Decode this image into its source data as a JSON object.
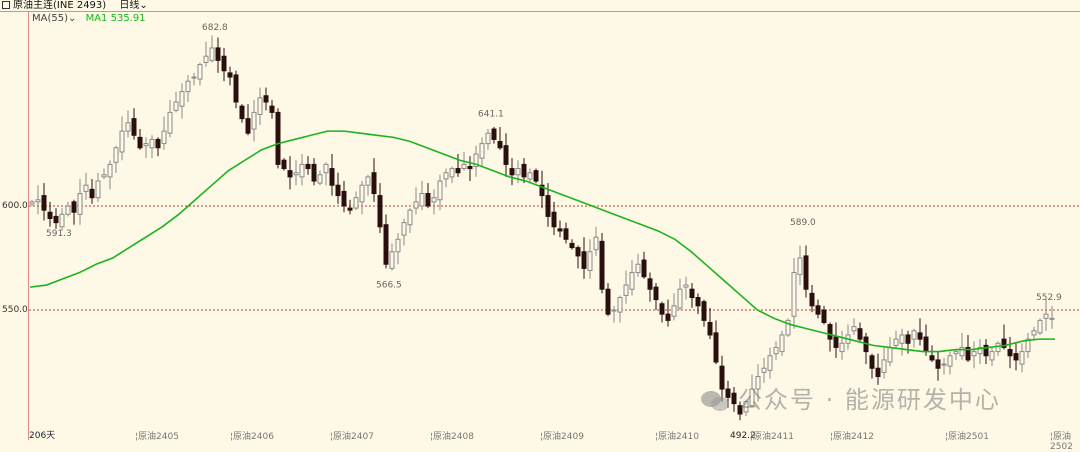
{
  "header": {
    "title": "原油主连(INE 2493)",
    "period": "日线",
    "ma_selector": "MA(55)",
    "ma1_label": "MA1 535.91"
  },
  "colors": {
    "up": "#8a8a8a",
    "down": "#2a0f0f",
    "ma": "#1cb31c",
    "gridline": "#c0392b",
    "background": "#fdf9e6"
  },
  "y_axis": {
    "ticks": [
      {
        "value": 600,
        "label": "600.0"
      },
      {
        "value": 550,
        "label": "550.0"
      }
    ]
  },
  "x_axis": {
    "days_label": "206天",
    "months": [
      "原油2405",
      "原油2406",
      "原油2407",
      "原油2408",
      "原油2409",
      "原油2410",
      "原油2411",
      "原油2412",
      "原油2501",
      "原油2502"
    ]
  },
  "annotations": [
    {
      "label": "682.8",
      "value": 682.8
    },
    {
      "label": "591.3",
      "value": 591.3
    },
    {
      "label": "566.5",
      "value": 566.5
    },
    {
      "label": "641.1",
      "value": 641.1
    },
    {
      "label": "589.0",
      "value": 589.0
    },
    {
      "label": "492.2",
      "value": 492.2
    },
    {
      "label": "552.9",
      "value": 552.9
    }
  ],
  "watermark": "公众号 · 能源研发中心",
  "chart_data": {
    "type": "candlestick",
    "closes": [
      602,
      603,
      598,
      594,
      592,
      596,
      600,
      597,
      606,
      610,
      604,
      612,
      615,
      620,
      628,
      636,
      640,
      634,
      628,
      630,
      632,
      628,
      636,
      645,
      650,
      655,
      660,
      662,
      668,
      672,
      676,
      670,
      665,
      662,
      650,
      642,
      635,
      645,
      652,
      650,
      645,
      620,
      618,
      614,
      616,
      620,
      618,
      612,
      615,
      620,
      610,
      605,
      600,
      598,
      604,
      610,
      614,
      606,
      590,
      572,
      578,
      584,
      592,
      598,
      602,
      606,
      600,
      604,
      612,
      616,
      618,
      616,
      620,
      618,
      625,
      630,
      635,
      632,
      628,
      620,
      615,
      618,
      614,
      616,
      612,
      605,
      595,
      590,
      588,
      584,
      580,
      576,
      570,
      578,
      585,
      560,
      548,
      550,
      556,
      562,
      568,
      572,
      566,
      560,
      555,
      548,
      545,
      552,
      560,
      562,
      556,
      552,
      545,
      538,
      525,
      512,
      508,
      505,
      500,
      506,
      512,
      518,
      522,
      528,
      532,
      538,
      545,
      568,
      575,
      560,
      552,
      548,
      544,
      536,
      532,
      534,
      538,
      542,
      536,
      530,
      522,
      518,
      526,
      532,
      536,
      538,
      534,
      540,
      536,
      530,
      526,
      522,
      524,
      528,
      530,
      532,
      526,
      530,
      532,
      528,
      530,
      534,
      532,
      528,
      526,
      530,
      536,
      540,
      545,
      548,
      546
    ],
    "ma55": [
      561,
      562,
      565,
      568,
      572,
      575,
      580,
      585,
      590,
      596,
      603,
      610,
      617,
      622,
      627,
      630,
      632,
      634,
      636,
      636,
      635,
      634,
      633,
      631,
      628,
      625,
      622,
      620,
      617,
      614,
      612,
      609,
      606,
      603,
      600,
      597,
      594,
      591,
      588,
      584,
      578,
      571,
      564,
      557,
      550,
      546,
      543,
      541,
      539,
      537,
      535,
      533,
      532,
      531,
      530,
      530,
      531,
      531,
      532,
      533,
      535,
      536,
      536
    ],
    "annotation_values": {
      "682.8": 682.8,
      "591.3": 591.3,
      "566.5": 566.5,
      "641.1": 641.1,
      "589.0": 589.0,
      "492.2": 492.2,
      "552.9": 552.9
    }
  }
}
